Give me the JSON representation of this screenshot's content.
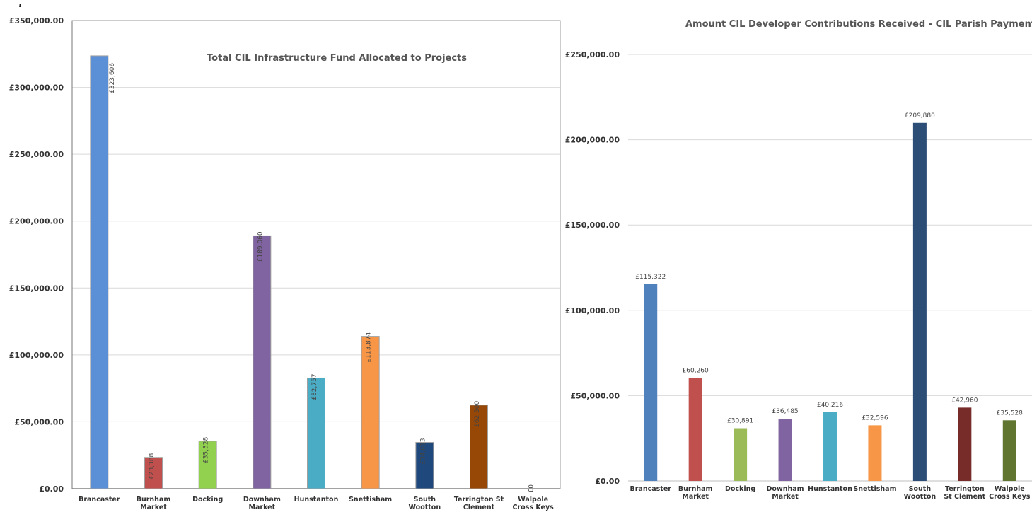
{
  "page": {
    "top_fragment_text": "...)"
  },
  "chart_data": [
    {
      "type": "bar",
      "title": "Total CIL Infrastructure Fund Allocated to Projects",
      "xlabel": "",
      "ylabel": "",
      "ylim": [
        0,
        350000
      ],
      "y_ticks": [
        "£0.00",
        "£50,000.00",
        "£100,000.00",
        "£150,000.00",
        "£200,000.00",
        "£250,000.00",
        "£300,000.00",
        "£350,000.00"
      ],
      "categories": [
        "Brancaster",
        "Burnham Market",
        "Docking",
        "Downham Market",
        "Hunstanton",
        "Snettisham",
        "South Wootton",
        "Terrington St Clement",
        "Walpole Cross Keys"
      ],
      "category_lines": [
        [
          "Brancaster"
        ],
        [
          "Burnham",
          "Market"
        ],
        [
          "Docking"
        ],
        [
          "Downham",
          "Market"
        ],
        [
          "Hunstanton"
        ],
        [
          "Snettisham"
        ],
        [
          "South",
          "Wootton"
        ],
        [
          "Terrington St",
          "Clement"
        ],
        [
          "Walpole",
          "Cross Keys"
        ]
      ],
      "values": [
        323606,
        23388,
        35528,
        189060,
        82757,
        113874,
        34613,
        62500,
        0
      ],
      "data_labels": [
        "£323,606",
        "£23,388",
        "£35,528",
        "£189,060",
        "£82,757",
        "£113,874",
        "£34,613",
        "£62,500",
        "£0"
      ],
      "colors": [
        "#5b8fd6",
        "#c0504d",
        "#92d050",
        "#8064a2",
        "#4bacc6",
        "#f79646",
        "#1f497d",
        "#974706",
        "#cccccc"
      ],
      "label_orientation": "vertical",
      "grid": true,
      "legend": "none"
    },
    {
      "type": "bar",
      "title": "Amount CIL Developer Contributions Received - CIL Parish Payment",
      "xlabel": "",
      "ylabel": "",
      "ylim": [
        0,
        250000
      ],
      "y_ticks": [
        "£0.00",
        "£50,000.00",
        "£100,000.00",
        "£150,000.00",
        "£200,000.00",
        "£250,000.00"
      ],
      "categories": [
        "Brancaster",
        "Burnham Market",
        "Docking",
        "Downham Market",
        "Hunstanton",
        "Snettisham",
        "South Wootton",
        "Terrington St Clement",
        "Walpole Cross Keys"
      ],
      "category_lines": [
        [
          "Brancaster"
        ],
        [
          "Burnham",
          "Market"
        ],
        [
          "Docking"
        ],
        [
          "Downham",
          "Market"
        ],
        [
          "Hunstanton"
        ],
        [
          "Snettisham"
        ],
        [
          "South",
          "Wootton"
        ],
        [
          "Terrington",
          "St Clement"
        ],
        [
          "Walpole",
          "Cross Keys"
        ]
      ],
      "values": [
        115322,
        60260,
        30891,
        36485,
        40216,
        32596,
        209880,
        42960,
        35528
      ],
      "data_labels": [
        "£115,322",
        "£60,260",
        "£30,891",
        "£36,485",
        "£40,216",
        "£32,596",
        "£209,880",
        "£42,960",
        "£35,528"
      ],
      "colors": [
        "#4f81bd",
        "#c0504d",
        "#9bbb59",
        "#8064a2",
        "#4bacc6",
        "#f79646",
        "#2c4d75",
        "#772c2a",
        "#5f7530"
      ],
      "label_orientation": "horizontal",
      "grid": true,
      "legend": "none"
    }
  ]
}
